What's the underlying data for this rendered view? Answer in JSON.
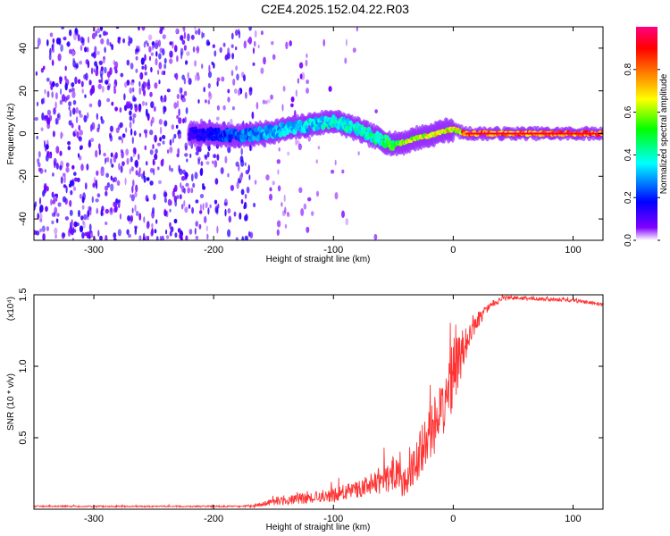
{
  "figure": {
    "title": "C2E4.2025.152.04.22.R03"
  },
  "chart_data": [
    {
      "type": "heatmap",
      "xlabel": "Height of straight line (km)",
      "ylabel": "Frequency (Hz)",
      "xlim": [
        -350,
        125
      ],
      "ylim": [
        -50,
        50
      ],
      "x_ticks": [
        -300,
        -200,
        -100,
        0,
        100
      ],
      "y_ticks": [
        -40,
        -20,
        0,
        20,
        40
      ],
      "colorbar": {
        "label": "Normalized spectral amplitude",
        "range": [
          0,
          1
        ],
        "ticks": [
          0.0,
          0.2,
          0.4,
          0.6,
          0.8
        ],
        "colors": [
          "#ffffff",
          "#8000ff",
          "#0000ff",
          "#00ffff",
          "#00ff00",
          "#ffff00",
          "#ff8000",
          "#ff0000",
          "#ff0080"
        ]
      },
      "ridge": {
        "x": [
          -220,
          -180,
          -160,
          -140,
          -120,
          -100,
          -80,
          -60,
          -50,
          -40,
          -30,
          -20,
          -10,
          0,
          10,
          50,
          100,
          125
        ],
        "y": [
          0,
          -1,
          0,
          2,
          4,
          6,
          2,
          -3,
          -5,
          -4,
          -2,
          -1,
          1,
          2,
          0,
          0,
          0,
          0
        ],
        "amplitude": [
          0.15,
          0.3,
          0.35,
          0.4,
          0.4,
          0.45,
          0.45,
          0.5,
          0.65,
          0.7,
          0.7,
          0.75,
          0.8,
          0.8,
          0.9,
          0.95,
          0.95,
          0.95
        ]
      },
      "grid": false
    },
    {
      "type": "line",
      "xlabel": "Height of straight line (km)",
      "ylabel": "SNR (10 * v/v)",
      "scale_note": "(x10⁴)",
      "xlim": [
        -350,
        125
      ],
      "ylim": [
        0,
        1.5
      ],
      "x_ticks": [
        -300,
        -200,
        -100,
        0,
        100
      ],
      "y_ticks": [
        0.5,
        1.0,
        1.5
      ],
      "series": [
        {
          "color": "#ff3333",
          "x": [
            -350,
            -300,
            -250,
            -200,
            -175,
            -160,
            -150,
            -140,
            -120,
            -100,
            -80,
            -60,
            -50,
            -40,
            -30,
            -20,
            -10,
            0,
            10,
            20,
            30,
            40,
            50,
            75,
            100,
            125
          ],
          "y": [
            0.02,
            0.02,
            0.02,
            0.02,
            0.02,
            0.03,
            0.05,
            0.06,
            0.08,
            0.1,
            0.14,
            0.2,
            0.24,
            0.18,
            0.35,
            0.5,
            0.7,
            0.95,
            1.15,
            1.32,
            1.42,
            1.47,
            1.48,
            1.47,
            1.46,
            1.43
          ],
          "noise": [
            0.005,
            0.005,
            0.005,
            0.005,
            0.006,
            0.015,
            0.03,
            0.03,
            0.04,
            0.05,
            0.06,
            0.09,
            0.13,
            0.1,
            0.15,
            0.22,
            0.22,
            0.25,
            0.12,
            0.06,
            0.03,
            0.02,
            0.015,
            0.012,
            0.012,
            0.012
          ]
        }
      ],
      "grid": false
    }
  ]
}
